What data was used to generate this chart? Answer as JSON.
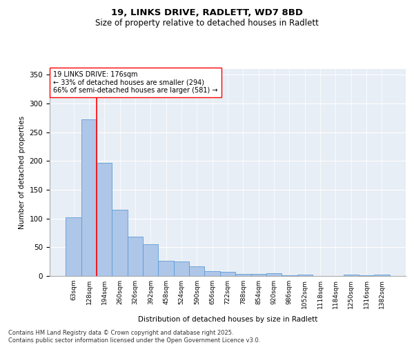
{
  "title1": "19, LINKS DRIVE, RADLETT, WD7 8BD",
  "title2": "Size of property relative to detached houses in Radlett",
  "xlabel": "Distribution of detached houses by size in Radlett",
  "ylabel": "Number of detached properties",
  "bar_labels": [
    "63sqm",
    "128sqm",
    "194sqm",
    "260sqm",
    "326sqm",
    "392sqm",
    "458sqm",
    "524sqm",
    "590sqm",
    "656sqm",
    "722sqm",
    "788sqm",
    "854sqm",
    "920sqm",
    "986sqm",
    "1052sqm",
    "1118sqm",
    "1184sqm",
    "1250sqm",
    "1316sqm",
    "1382sqm"
  ],
  "bar_values": [
    102,
    272,
    197,
    115,
    68,
    55,
    26,
    25,
    17,
    9,
    7,
    4,
    4,
    5,
    1,
    3,
    0,
    0,
    3,
    1,
    2
  ],
  "bar_color": "#aec6e8",
  "bar_edgecolor": "#5b9bd5",
  "vline_bin_index": 2,
  "annotation_text1": "19 LINKS DRIVE: 176sqm",
  "annotation_text2": "← 33% of detached houses are smaller (294)",
  "annotation_text3": "66% of semi-detached houses are larger (581) →",
  "ylim": [
    0,
    360
  ],
  "yticks": [
    0,
    50,
    100,
    150,
    200,
    250,
    300,
    350
  ],
  "background_color": "#e8eef5",
  "footer_text": "Contains HM Land Registry data © Crown copyright and database right 2025.\nContains public sector information licensed under the Open Government Licence v3.0."
}
